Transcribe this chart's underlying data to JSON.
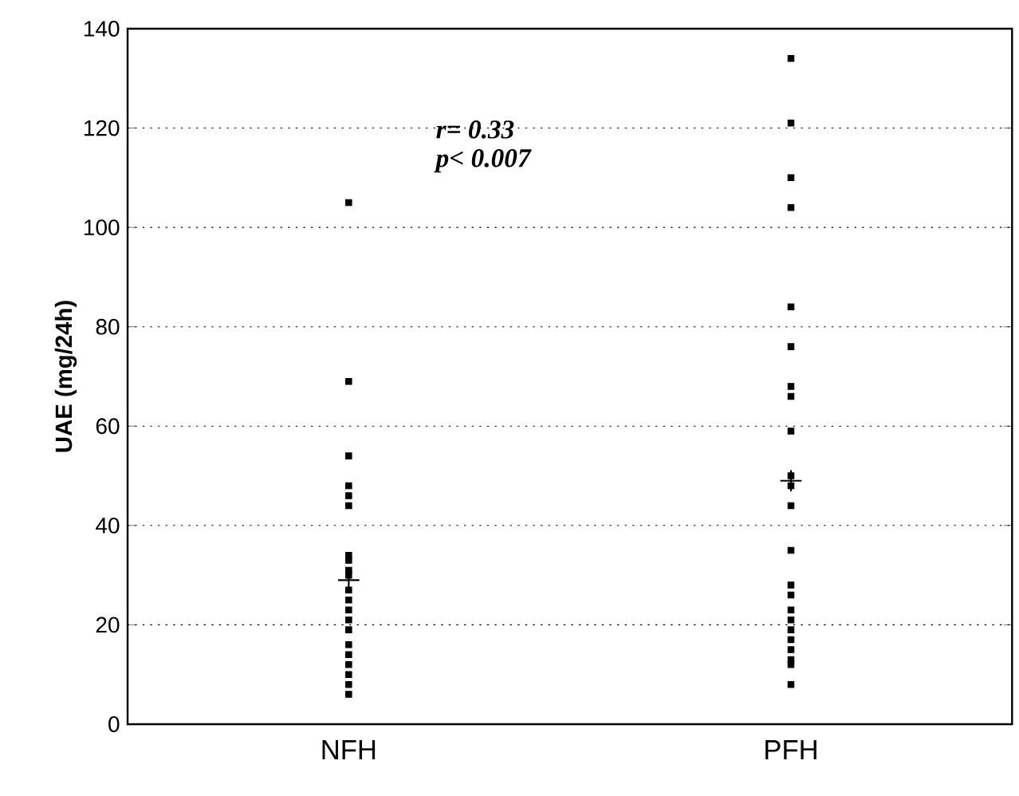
{
  "chart_data": {
    "type": "scatter",
    "ylabel": "UAE (mg/24h)",
    "categories": [
      "NFH",
      "PFH"
    ],
    "series": [
      {
        "color": "#000000",
        "marker": "square",
        "x": [
          "NFH",
          "NFH",
          "NFH",
          "NFH",
          "NFH",
          "NFH",
          "NFH",
          "NFH",
          "NFH",
          "NFH",
          "NFH",
          "NFH",
          "NFH",
          "NFH",
          "NFH",
          "NFH",
          "NFH",
          "NFH",
          "NFH",
          "NFH",
          "NFH"
        ],
        "values": [
          105,
          69,
          54,
          48,
          46,
          44,
          34,
          33,
          31,
          30,
          27,
          25,
          23,
          21,
          19,
          16,
          14,
          12,
          10,
          8,
          6
        ]
      },
      {
        "color": "#000000",
        "marker": "square",
        "x": [
          "PFH",
          "PFH",
          "PFH",
          "PFH",
          "PFH",
          "PFH",
          "PFH",
          "PFH",
          "PFH",
          "PFH",
          "PFH",
          "PFH",
          "PFH",
          "PFH",
          "PFH",
          "PFH",
          "PFH",
          "PFH",
          "PFH",
          "PFH",
          "PFH",
          "PFH",
          "PFH"
        ],
        "values": [
          134,
          121,
          110,
          104,
          84,
          76,
          68,
          66,
          59,
          50,
          48,
          44,
          35,
          28,
          26,
          23,
          21,
          19,
          17,
          15,
          13,
          12,
          8
        ]
      },
      {
        "color": "#000000",
        "marker": "cross",
        "x": [
          "NFH",
          "PFH"
        ],
        "values": [
          29,
          49
        ]
      }
    ],
    "ylim": [
      0,
      140
    ],
    "yticks": [
      0,
      20,
      40,
      60,
      80,
      100,
      120,
      140
    ],
    "grid": "y",
    "annotations": [
      "r= 0.33",
      "p< 0.007"
    ]
  }
}
